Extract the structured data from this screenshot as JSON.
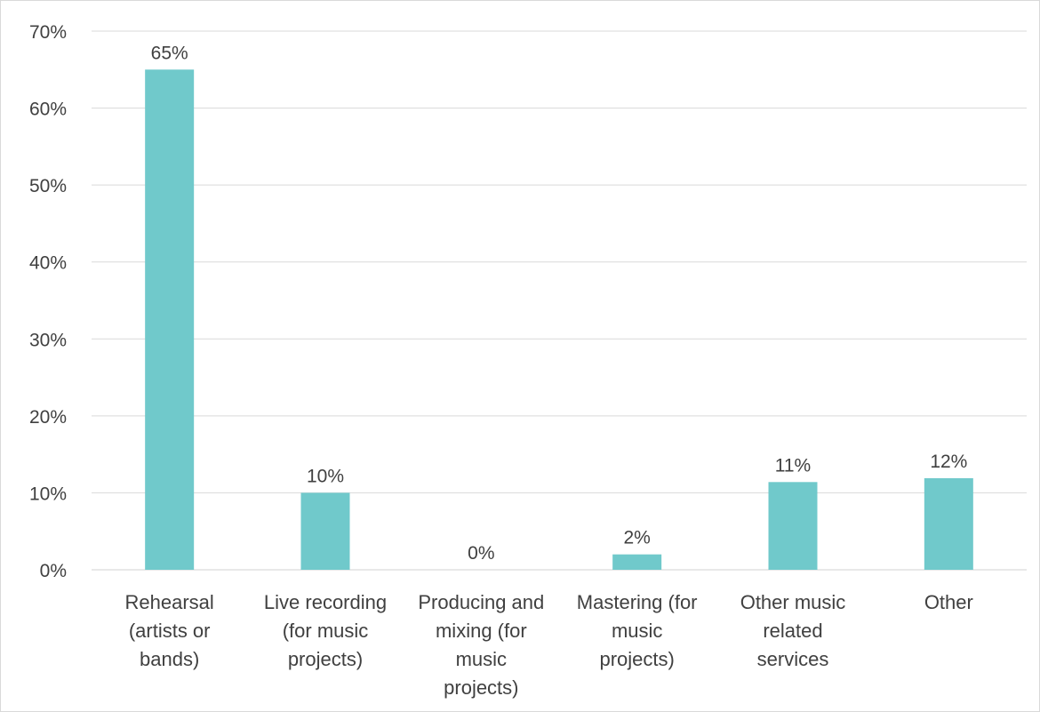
{
  "chart_data": {
    "type": "bar",
    "categories": [
      [
        "Rehearsal",
        "(artists or",
        "bands)"
      ],
      [
        "Live recording",
        "(for music",
        "projects)"
      ],
      [
        "Producing and",
        "mixing (for",
        "music",
        "projects)"
      ],
      [
        "Mastering (for",
        "music",
        "projects)"
      ],
      [
        "Other music",
        "related",
        "services"
      ],
      [
        "Other"
      ]
    ],
    "values": [
      65,
      10,
      0,
      2,
      11.4,
      11.9
    ],
    "data_labels": [
      "65%",
      "10%",
      "0%",
      "2%",
      "11%",
      "12%"
    ],
    "ylim": [
      0,
      70
    ],
    "yticks": [
      0,
      10,
      20,
      30,
      40,
      50,
      60,
      70
    ],
    "ytick_labels": [
      "0%",
      "10%",
      "20%",
      "30%",
      "40%",
      "50%",
      "60%",
      "70%"
    ],
    "grid": true,
    "bar_color": "#70c9cb",
    "title": "",
    "xlabel": "",
    "ylabel": ""
  }
}
